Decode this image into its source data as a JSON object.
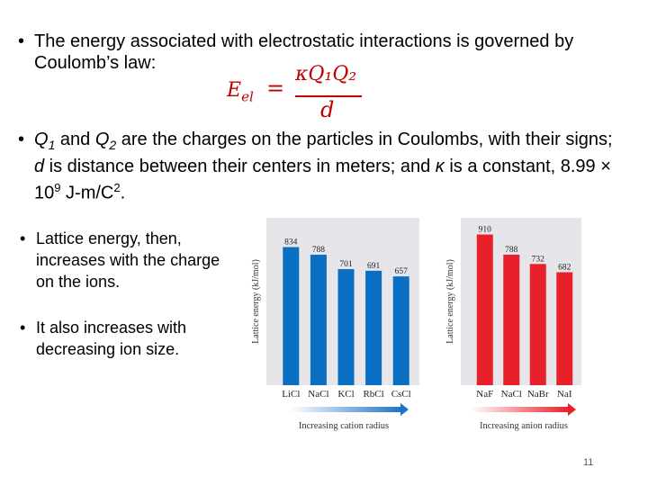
{
  "slide": {
    "bullet_char": "•",
    "bullets": {
      "b1_text": "The energy associated with electrostatic interactions is governed by Coulomb’s law:",
      "b2_q1": "Q",
      "b2_q1_sub": "1",
      "b2_and": " and ",
      "b2_q2": "Q",
      "b2_q2_sub": "2",
      "b2_mid": " are the charges on the particles in Coulombs, with their signs; ",
      "b2_d": "d",
      "b2_mid2": " is distance between their centers in meters; and ",
      "b2_kappa": "κ",
      "b2_mid3": " is a constant, 8.99 × 10",
      "b2_exp": "9",
      "b2_units": " J-m/C",
      "b2_units_exp": "2",
      "b2_end": ".",
      "b3_text": "Lattice energy, then, increases with the charge on the ions.",
      "b4_text": "It also increases with decreasing ion size."
    },
    "formula": {
      "lhs_main": "E",
      "lhs_sub": "el",
      "equals": "=",
      "numerator": "κQ₁Q₂",
      "denominator": "d"
    },
    "page_number": "11"
  },
  "chart_data": [
    {
      "type": "bar",
      "categories": [
        "LiCl",
        "NaCl",
        "KCl",
        "RbCl",
        "CsCl"
      ],
      "values": [
        834,
        788,
        701,
        691,
        657
      ],
      "ylabel": "Lattice energy (kJ/mol)",
      "xlabel": "Increasing cation radius",
      "ylim": [
        0,
        1000
      ],
      "bar_color": "#0a6fc2",
      "arrow_color": "#1e73c8"
    },
    {
      "type": "bar",
      "categories": [
        "NaF",
        "NaCl",
        "NaBr",
        "NaI"
      ],
      "values": [
        910,
        788,
        732,
        682
      ],
      "ylabel": "Lattice energy (kJ/mol)",
      "xlabel": "Increasing anion radius",
      "ylim": [
        0,
        1000
      ],
      "bar_color": "#e8202a",
      "arrow_color": "#e8202a"
    }
  ]
}
